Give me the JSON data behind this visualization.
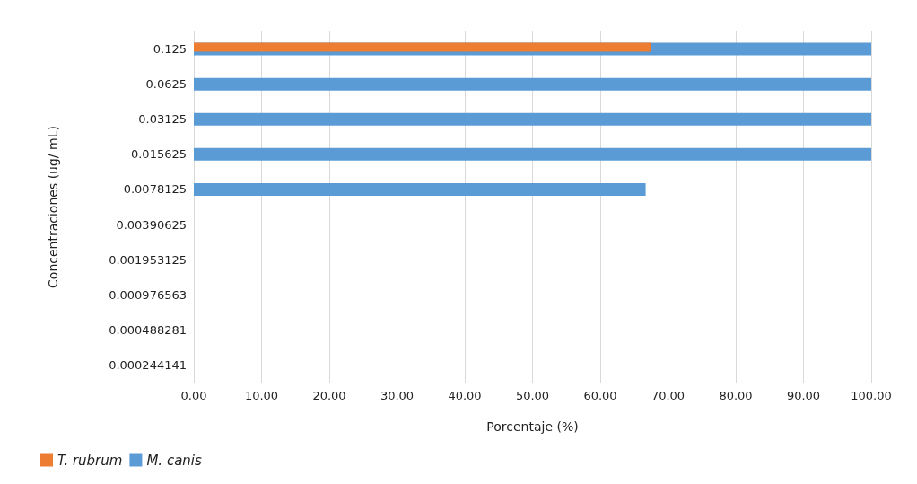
{
  "chart_data": {
    "type": "bar",
    "orientation": "horizontal",
    "xlabel": "Porcentaje (%)",
    "ylabel": "Concentraciones (ug/ mL)",
    "categories": [
      "0.125",
      "0.0625",
      "0.03125",
      "0.015625",
      "0.0078125",
      "0.00390625",
      "0.001953125",
      "0.000976563",
      "0.000488281",
      "0.000244141"
    ],
    "series": [
      {
        "name": "T. rubrum",
        "color": "#ed7d31",
        "values": [
          67.5,
          0,
          0,
          0,
          0,
          0,
          0,
          0,
          0,
          0
        ]
      },
      {
        "name": "M. canis",
        "color": "#5b9bd5",
        "values": [
          100,
          100,
          100,
          100,
          66.7,
          0,
          0,
          0,
          0,
          0
        ]
      }
    ],
    "xlim": [
      0,
      100
    ],
    "xticks": [
      {
        "value": 0,
        "label": "0.00"
      },
      {
        "value": 10,
        "label": "10.00"
      },
      {
        "value": 20,
        "label": "20.00"
      },
      {
        "value": 30,
        "label": "30.00"
      },
      {
        "value": 40,
        "label": "40.00"
      },
      {
        "value": 50,
        "label": "50.00"
      },
      {
        "value": 60,
        "label": "60.00"
      },
      {
        "value": 70,
        "label": "70.00"
      },
      {
        "value": 80,
        "label": "80.00"
      },
      {
        "value": 90,
        "label": "90.00"
      },
      {
        "value": 100,
        "label": "100.00"
      }
    ],
    "grid": "x",
    "legend": "bottom left"
  }
}
